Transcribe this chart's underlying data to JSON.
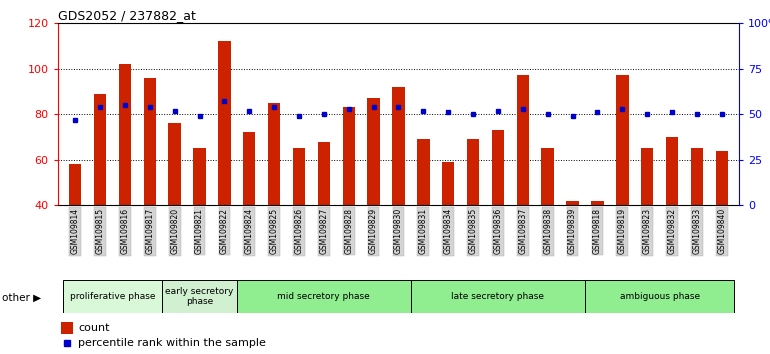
{
  "title": "GDS2052 / 237882_at",
  "samples": [
    "GSM109814",
    "GSM109815",
    "GSM109816",
    "GSM109817",
    "GSM109820",
    "GSM109821",
    "GSM109822",
    "GSM109824",
    "GSM109825",
    "GSM109826",
    "GSM109827",
    "GSM109828",
    "GSM109829",
    "GSM109830",
    "GSM109831",
    "GSM109834",
    "GSM109835",
    "GSM109836",
    "GSM109837",
    "GSM109838",
    "GSM109839",
    "GSM109818",
    "GSM109819",
    "GSM109823",
    "GSM109832",
    "GSM109833",
    "GSM109840"
  ],
  "count": [
    58,
    89,
    102,
    96,
    76,
    65,
    112,
    72,
    85,
    65,
    68,
    83,
    87,
    92,
    69,
    59,
    69,
    73,
    97,
    65,
    42,
    42,
    97,
    65,
    70,
    65,
    64
  ],
  "percentile": [
    47,
    54,
    55,
    54,
    52,
    49,
    57,
    52,
    54,
    49,
    50,
    53,
    54,
    54,
    52,
    51,
    50,
    52,
    53,
    50,
    49,
    51,
    53,
    50,
    51,
    50,
    50
  ],
  "phases": [
    {
      "name": "proliferative phase",
      "start": 0,
      "end": 4,
      "color": "#d8f8d8"
    },
    {
      "name": "early secretory\nphase",
      "start": 4,
      "end": 7,
      "color": "#d0f0d0"
    },
    {
      "name": "mid secretory phase",
      "start": 7,
      "end": 14,
      "color": "#90ee90"
    },
    {
      "name": "late secretory phase",
      "start": 14,
      "end": 21,
      "color": "#90ee90"
    },
    {
      "name": "ambiguous phase",
      "start": 21,
      "end": 27,
      "color": "#90ee90"
    }
  ],
  "bar_color": "#cc2200",
  "dot_color": "#0000cc",
  "ylim_left": [
    40,
    120
  ],
  "ylim_right": [
    0,
    100
  ],
  "left_ticks": [
    40,
    60,
    80,
    100,
    120
  ],
  "right_ticks": [
    0,
    25,
    50,
    75,
    100
  ]
}
